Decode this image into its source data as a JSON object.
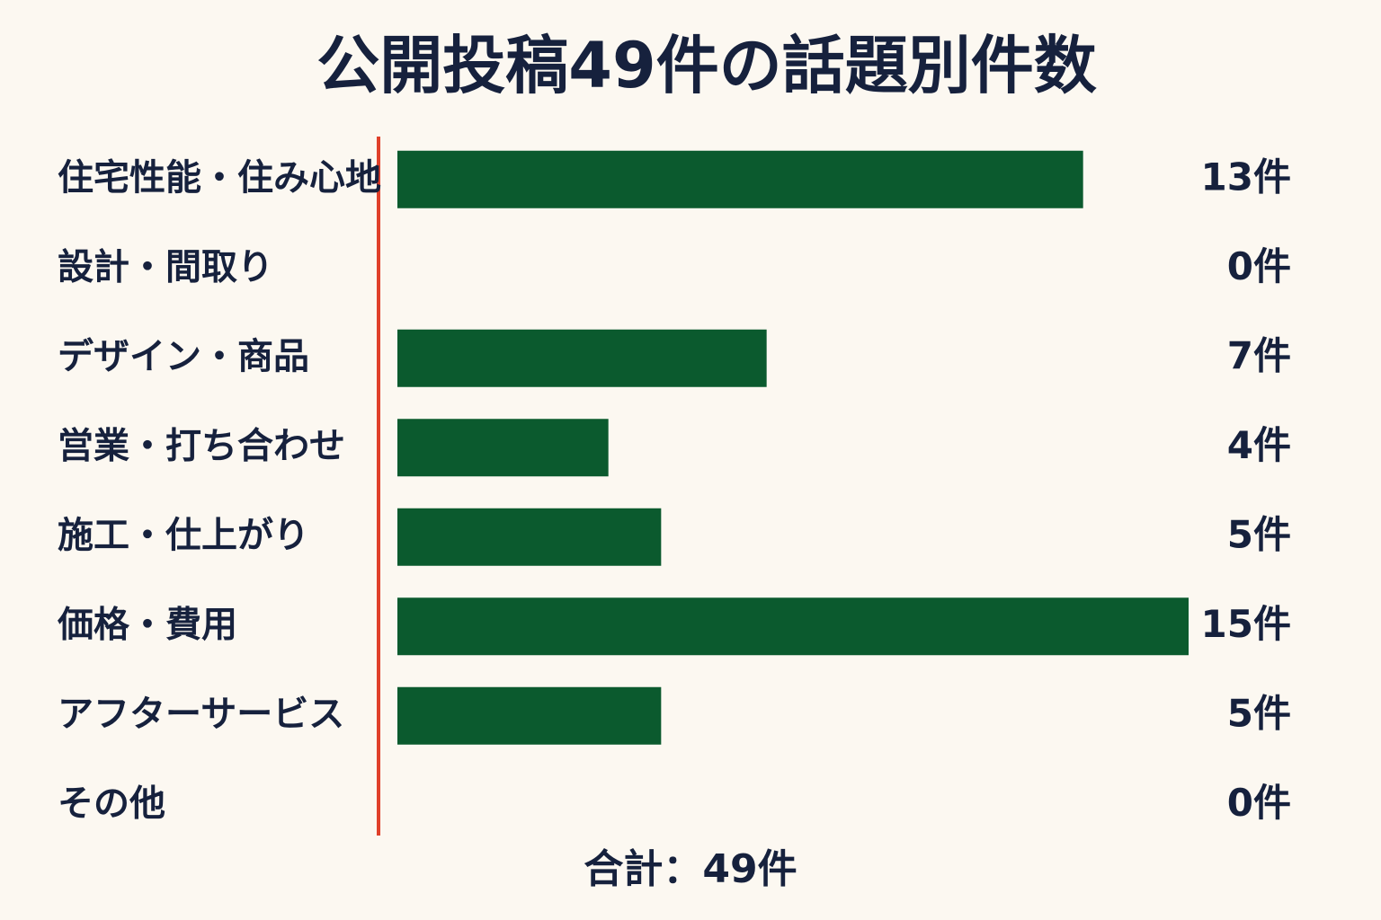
{
  "chart_data": {
    "type": "barh",
    "title": "公開投稿49件の話題別件数",
    "categories": [
      "住宅性能・住み心地",
      "設計・間取り",
      "デザイン・商品",
      "営業・打ち合わせ",
      "施工・仕上がり",
      "価格・費用",
      "アフターサービス",
      "その他"
    ],
    "values": [
      13,
      0,
      7,
      4,
      5,
      15,
      5,
      0
    ],
    "value_labels": [
      "13件",
      "0件",
      "7件",
      "4件",
      "5件",
      "15件",
      "5件",
      "0件"
    ],
    "color": "#0b5a2e",
    "footer": "合計：49件"
  }
}
